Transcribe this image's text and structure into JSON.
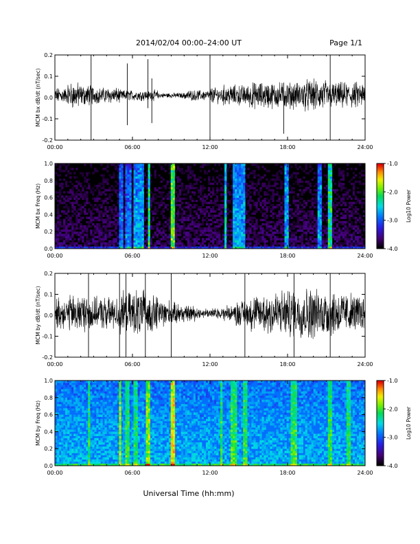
{
  "header": {
    "title": "2014/02/04  00:00–24:00 UT",
    "page": "Page 1/1"
  },
  "footer": {
    "xlabel": "Universal Time (hh:mm)"
  },
  "chart_data": [
    {
      "type": "line",
      "ylabel": "MCM bx dB/dt (nT/sec)",
      "ylim": [
        -0.2,
        0.2
      ],
      "yticks": [
        "-0.2",
        "-0.1",
        "0.0",
        "0.1",
        "0.2"
      ],
      "xticks": [
        "00:00",
        "06:00",
        "12:00",
        "18:00",
        "24:00"
      ],
      "x_range_hours": [
        0,
        24
      ],
      "series": [
        {
          "values": [
            0.03,
            0.05,
            0.04,
            0.03,
            0.03,
            0.02,
            0.02,
            0.02,
            0.01,
            0.01,
            0.02,
            0.02,
            0.03,
            0.04,
            0.04,
            0.05,
            0.05,
            0.05,
            0.05,
            0.06,
            0.06,
            0.05,
            0.05,
            0.05
          ]
        }
      ],
      "spikes": [
        {
          "hour": 2.8,
          "min": -0.2,
          "max": 0.2
        },
        {
          "hour": 12.0,
          "min": -0.2,
          "max": 0.2
        },
        {
          "hour": 17.7,
          "min": -0.17,
          "max": 0.07
        },
        {
          "hour": 21.3,
          "min": -0.2,
          "max": 0.2
        },
        {
          "hour": 5.6,
          "min": -0.13,
          "max": 0.16
        },
        {
          "hour": 7.2,
          "min": -0.05,
          "max": 0.18
        },
        {
          "hour": 7.5,
          "min": -0.12,
          "max": 0.09
        }
      ]
    },
    {
      "type": "heatmap",
      "ylabel": "MCM bx Freq (Hz)",
      "ylim": [
        0,
        1
      ],
      "yticks": [
        "0.0",
        "0.2",
        "0.4",
        "0.6",
        "0.8",
        "1.0"
      ],
      "xticks": [
        "00:00",
        "06:00",
        "12:00",
        "18:00",
        "24:00"
      ],
      "colorbar": {
        "label": "Log10 Power",
        "range": [
          -4,
          -1
        ],
        "ticks": [
          "-1.0",
          "-2.0",
          "-3.0",
          "-4.0"
        ]
      },
      "background_level": -4.0,
      "bands": [
        {
          "start": 4.9,
          "end": 5.2,
          "level": -3.0
        },
        {
          "start": 5.5,
          "end": 5.9,
          "level": -3.0
        },
        {
          "start": 6.1,
          "end": 6.9,
          "level": -2.8
        },
        {
          "start": 7.2,
          "end": 7.4,
          "level": -2.3
        },
        {
          "start": 9.0,
          "end": 9.2,
          "level": -2.0
        },
        {
          "start": 13.1,
          "end": 13.3,
          "level": -2.5
        },
        {
          "start": 13.7,
          "end": 14.7,
          "level": -2.8
        },
        {
          "start": 17.7,
          "end": 18.1,
          "level": -2.8
        },
        {
          "start": 20.3,
          "end": 20.6,
          "level": -2.9
        },
        {
          "start": 21.2,
          "end": 21.4,
          "level": -2.3
        }
      ]
    },
    {
      "type": "line",
      "ylabel": "MCM by dB/dt (nT/sec)",
      "ylim": [
        -0.2,
        0.2
      ],
      "yticks": [
        "-0.2",
        "-0.1",
        "0.0",
        "0.1",
        "0.2"
      ],
      "xticks": [
        "00:00",
        "06:00",
        "12:00",
        "18:00",
        "24:00"
      ],
      "x_range_hours": [
        0,
        24
      ],
      "series": [
        {
          "values": [
            0.06,
            0.07,
            0.07,
            0.06,
            0.06,
            0.08,
            0.09,
            0.07,
            0.05,
            0.04,
            0.03,
            0.02,
            0.02,
            0.03,
            0.05,
            0.07,
            0.09,
            0.09,
            0.09,
            0.1,
            0.09,
            0.09,
            0.08,
            0.07
          ]
        }
      ],
      "spikes": [
        {
          "hour": 2.6,
          "min": -0.2,
          "max": 0.2
        },
        {
          "hour": 5.0,
          "min": -0.2,
          "max": 0.2
        },
        {
          "hour": 5.5,
          "min": -0.2,
          "max": 0.2
        },
        {
          "hour": 7.0,
          "min": -0.2,
          "max": 0.2
        },
        {
          "hour": 9.0,
          "min": -0.2,
          "max": 0.2
        },
        {
          "hour": 14.7,
          "min": -0.2,
          "max": 0.2
        },
        {
          "hour": 18.5,
          "min": -0.2,
          "max": 0.2
        },
        {
          "hour": 21.3,
          "min": -0.2,
          "max": 0.2
        }
      ]
    },
    {
      "type": "heatmap",
      "ylabel": "MCM by Freq (Hz)",
      "ylim": [
        0,
        1
      ],
      "yticks": [
        "0.0",
        "0.2",
        "0.4",
        "0.6",
        "0.8",
        "1.0"
      ],
      "xticks": [
        "00:00",
        "06:00",
        "12:00",
        "18:00",
        "24:00"
      ],
      "colorbar": {
        "label": "Log10 Power",
        "range": [
          -4,
          -1
        ],
        "ticks": [
          "-1.0",
          "-2.0",
          "-3.0",
          "-4.0"
        ]
      },
      "background_level": -2.9,
      "bands": [
        {
          "start": 2.6,
          "end": 2.7,
          "level": -2.2
        },
        {
          "start": 4.9,
          "end": 5.1,
          "level": -1.9
        },
        {
          "start": 5.5,
          "end": 5.8,
          "level": -2.2
        },
        {
          "start": 6.1,
          "end": 6.4,
          "level": -2.3
        },
        {
          "start": 7.0,
          "end": 7.4,
          "level": -1.9
        },
        {
          "start": 9.0,
          "end": 9.2,
          "level": -1.6
        },
        {
          "start": 12.8,
          "end": 13.0,
          "level": -2.2
        },
        {
          "start": 13.6,
          "end": 14.0,
          "level": -2.2
        },
        {
          "start": 14.6,
          "end": 14.9,
          "level": -2.2
        },
        {
          "start": 18.3,
          "end": 18.7,
          "level": -2.2
        },
        {
          "start": 21.2,
          "end": 21.5,
          "level": -2.2
        },
        {
          "start": 22.6,
          "end": 22.8,
          "level": -2.3
        }
      ]
    }
  ]
}
